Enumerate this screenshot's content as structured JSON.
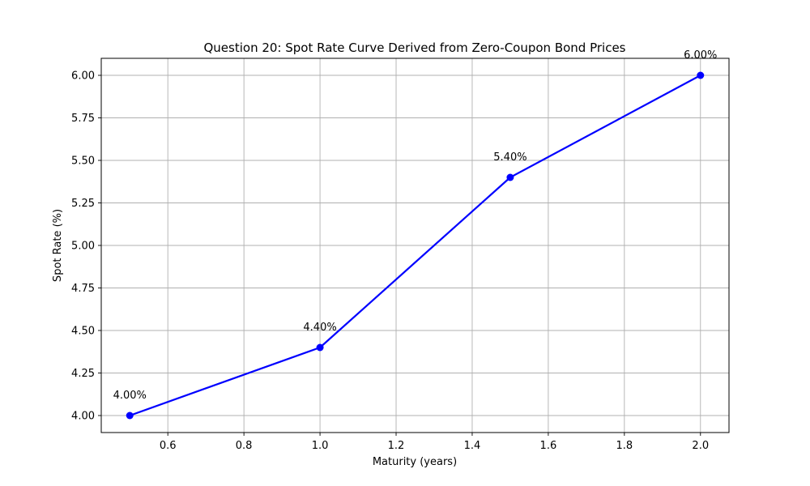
{
  "chart_data": {
    "type": "line",
    "title": "Question 20: Spot Rate Curve Derived from Zero-Coupon Bond Prices",
    "xlabel": "Maturity (years)",
    "ylabel": "Spot Rate (%)",
    "xlim": [
      0.425,
      2.075
    ],
    "ylim": [
      3.9,
      6.1
    ],
    "grid": true,
    "x_ticks": [
      0.6,
      0.8,
      1.0,
      1.2,
      1.4,
      1.6,
      1.8,
      2.0
    ],
    "x_tick_labels": [
      "0.6",
      "0.8",
      "1.0",
      "1.2",
      "1.4",
      "1.6",
      "1.8",
      "2.0"
    ],
    "y_ticks": [
      4.0,
      4.25,
      4.5,
      4.75,
      5.0,
      5.25,
      5.5,
      5.75,
      6.0
    ],
    "y_tick_labels": [
      "4.00",
      "4.25",
      "4.50",
      "4.75",
      "5.00",
      "5.25",
      "5.50",
      "5.75",
      "6.00"
    ],
    "series": [
      {
        "color": "#0000ff",
        "x": [
          0.5,
          1.0,
          1.5,
          2.0
        ],
        "y": [
          4.0,
          4.4,
          5.4,
          6.0
        ],
        "labels": [
          "4.00%",
          "4.40%",
          "5.40%",
          "6.00%"
        ]
      }
    ]
  }
}
